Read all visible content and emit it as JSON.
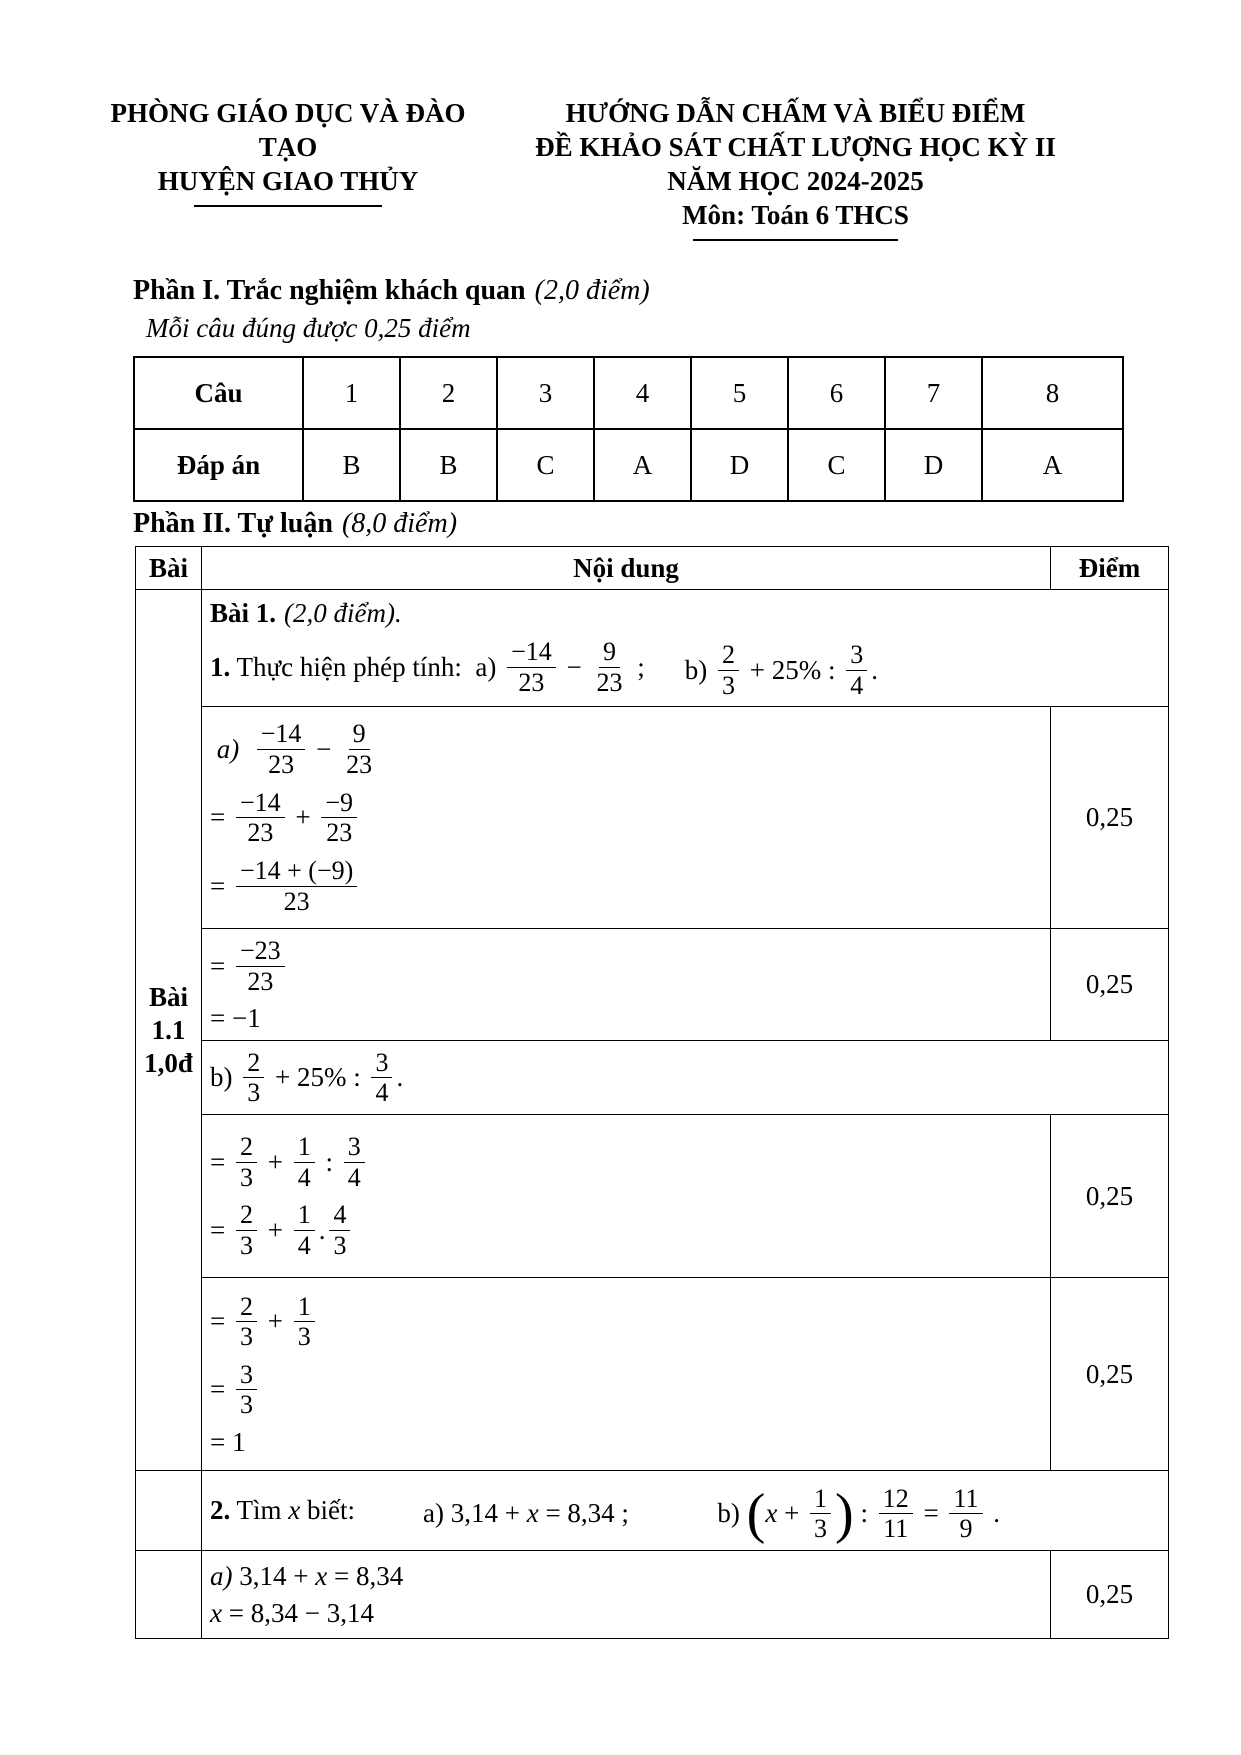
{
  "colors": {
    "text": "#000000",
    "border": "#000000",
    "background": "#ffffff"
  },
  "header": {
    "left": {
      "line1": "PHÒNG GIÁO DỤC VÀ ĐÀO TẠO",
      "line2": "HUYỆN GIAO THỦY"
    },
    "right": {
      "line1": "HƯỚNG DẪN CHẤM VÀ BIỂU ĐIỂM",
      "line2": "ĐỀ KHẢO SÁT CHẤT LƯỢNG HỌC KỲ II",
      "line3": "NĂM HỌC 2024-2025",
      "line4": "Môn: Toán 6 THCS"
    }
  },
  "part1": {
    "title": "Phần I. Trắc nghiệm khách quan",
    "title_note": "(2,0 điểm)",
    "subtitle": "Mỗi câu đúng được 0,25 điểm",
    "answer_table": {
      "row_labels": [
        "Câu",
        "Đáp án"
      ],
      "questions": [
        "1",
        "2",
        "3",
        "4",
        "5",
        "6",
        "7",
        "8"
      ],
      "answers": [
        "B",
        "B",
        "C",
        "A",
        "D",
        "C",
        "D",
        "A"
      ]
    }
  },
  "part2": {
    "title": "Phần II. Tự luận",
    "title_note": "(8,0 điểm)",
    "columns": {
      "bai": "Bài",
      "noidung": "Nội dung",
      "diem": "Điểm"
    },
    "bai_cell": {
      "line1": "Bài",
      "line2": "1.1",
      "line3": "1,0đ"
    },
    "bai1": {
      "heading_bold": "Bài 1.",
      "heading_italic": "(2,0 điểm).",
      "q1_left": [
        {
          "t": "b",
          "v": "1."
        },
        {
          "t": "txt",
          "v": " Thực hiện phép tính:  a) "
        },
        {
          "t": "frac",
          "n": "−14",
          "d": "23"
        },
        {
          "t": "txt",
          "v": " − "
        },
        {
          "t": "frac",
          "n": "9",
          "d": "23"
        },
        {
          "t": "txt",
          "v": " ;"
        }
      ],
      "q1_right": [
        {
          "t": "txt",
          "v": "b) "
        },
        {
          "t": "frac",
          "n": "2",
          "d": "3"
        },
        {
          "t": "txt",
          "v": " + 25% : "
        },
        {
          "t": "frac",
          "n": "3",
          "d": "4"
        },
        {
          "t": "txt",
          "v": "."
        }
      ],
      "sol_a_line1": [
        {
          "t": "it",
          "v": " a)  "
        },
        {
          "t": "frac",
          "n": "−14",
          "d": "23"
        },
        {
          "t": "txt",
          "v": " − "
        },
        {
          "t": "frac",
          "n": "9",
          "d": "23"
        }
      ],
      "sol_a_line2": [
        {
          "t": "txt",
          "v": "= "
        },
        {
          "t": "frac",
          "n": "−14",
          "d": "23"
        },
        {
          "t": "txt",
          "v": " + "
        },
        {
          "t": "frac",
          "n": "−9",
          "d": "23"
        }
      ],
      "sol_a_line3": [
        {
          "t": "txt",
          "v": "= "
        },
        {
          "t": "frac",
          "n": "−14 + (−9)",
          "d": "23"
        }
      ],
      "sol_a_line4": [
        {
          "t": "txt",
          "v": "= "
        },
        {
          "t": "frac",
          "n": "−23",
          "d": "23"
        }
      ],
      "sol_a_line5": [
        {
          "t": "txt",
          "v": "= −1"
        }
      ],
      "b_restate": [
        {
          "t": "txt",
          "v": "b) "
        },
        {
          "t": "frac",
          "n": "2",
          "d": "3"
        },
        {
          "t": "txt",
          "v": " + 25% : "
        },
        {
          "t": "frac",
          "n": "3",
          "d": "4"
        },
        {
          "t": "txt",
          "v": "."
        }
      ],
      "sol_b_line1": [
        {
          "t": "txt",
          "v": "= "
        },
        {
          "t": "frac",
          "n": "2",
          "d": "3"
        },
        {
          "t": "txt",
          "v": " + "
        },
        {
          "t": "frac",
          "n": "1",
          "d": "4"
        },
        {
          "t": "txt",
          "v": " : "
        },
        {
          "t": "frac",
          "n": "3",
          "d": "4"
        }
      ],
      "sol_b_line2": [
        {
          "t": "txt",
          "v": "= "
        },
        {
          "t": "frac",
          "n": "2",
          "d": "3"
        },
        {
          "t": "txt",
          "v": " + "
        },
        {
          "t": "frac",
          "n": "1",
          "d": "4"
        },
        {
          "t": "txt",
          "v": "."
        },
        {
          "t": "frac",
          "n": "4",
          "d": "3"
        }
      ],
      "sol_b_line3": [
        {
          "t": "txt",
          "v": "= "
        },
        {
          "t": "frac",
          "n": "2",
          "d": "3"
        },
        {
          "t": "txt",
          "v": " + "
        },
        {
          "t": "frac",
          "n": "1",
          "d": "3"
        }
      ],
      "sol_b_line4": [
        {
          "t": "txt",
          "v": "= "
        },
        {
          "t": "frac",
          "n": "3",
          "d": "3"
        }
      ],
      "sol_b_line5": [
        {
          "t": "txt",
          "v": "= 1"
        }
      ]
    },
    "q2": {
      "intro": [
        {
          "t": "b",
          "v": "2."
        },
        {
          "t": "txt",
          "v": " Tìm "
        },
        {
          "t": "it",
          "v": "x"
        },
        {
          "t": "txt",
          "v": " biết:"
        }
      ],
      "a": [
        {
          "t": "txt",
          "v": "a) 3,14 + "
        },
        {
          "t": "it",
          "v": "x"
        },
        {
          "t": "txt",
          "v": " = 8,34 ;"
        }
      ],
      "b": [
        {
          "t": "txt",
          "v": "b) "
        },
        {
          "t": "big",
          "v": "("
        },
        {
          "t": "it",
          "v": "x"
        },
        {
          "t": "txt",
          "v": " + "
        },
        {
          "t": "frac",
          "n": "1",
          "d": "3"
        },
        {
          "t": "big",
          "v": ")"
        },
        {
          "t": "txt",
          "v": " : "
        },
        {
          "t": "frac",
          "n": "12",
          "d": "11"
        },
        {
          "t": "txt",
          "v": " = "
        },
        {
          "t": "frac",
          "n": "11",
          "d": "9"
        },
        {
          "t": "txt",
          "v": " ."
        }
      ],
      "sol_a_line1": [
        {
          "t": "it",
          "v": "a)"
        },
        {
          "t": "txt",
          "v": " 3,14 + "
        },
        {
          "t": "it",
          "v": "x"
        },
        {
          "t": "txt",
          "v": " = 8,34"
        }
      ],
      "sol_a_line2": [
        {
          "t": "it",
          "v": "x"
        },
        {
          "t": "txt",
          "v": " = 8,34 − 3,14"
        }
      ]
    },
    "scores": {
      "s1": "0,25",
      "s2": "0,25",
      "s3": "0,25",
      "s4": "0,25",
      "s5": "0,25"
    }
  }
}
